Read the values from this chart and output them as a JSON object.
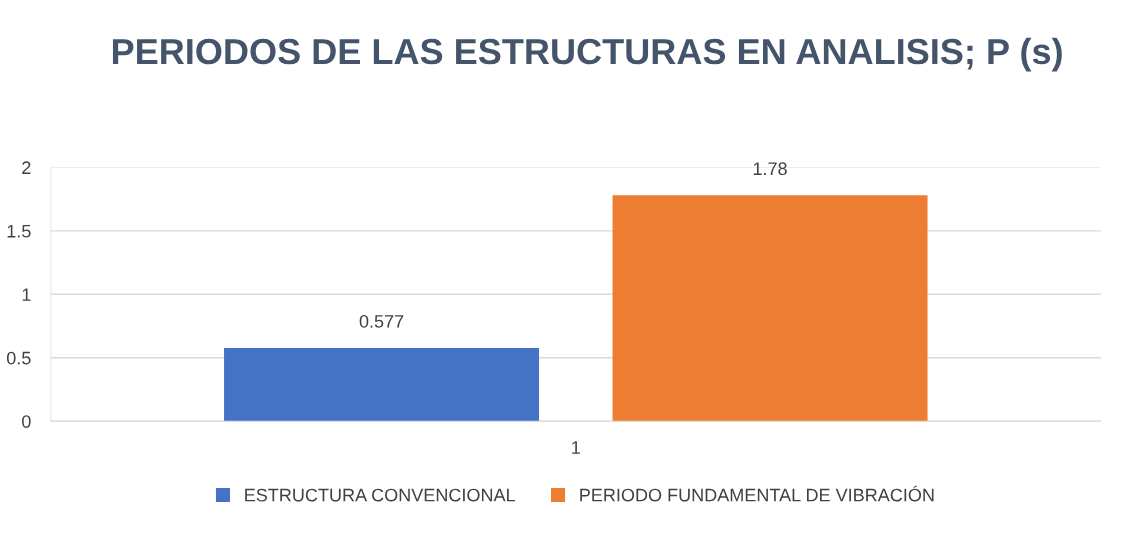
{
  "chart_data": {
    "type": "bar",
    "title": "PERIODOS DE LAS ESTRUCTURAS EN ANALISIS; P (s)",
    "categories": [
      "1"
    ],
    "series": [
      {
        "name": "ESTRUCTURA CONVENCIONAL",
        "color": "#4472c4",
        "values": [
          0.577
        ]
      },
      {
        "name": "PERIODO FUNDAMENTAL DE VIBRACIÓN",
        "color": "#ed7d31",
        "values": [
          1.78
        ]
      }
    ],
    "ylim": [
      0,
      2
    ],
    "yticks": [
      0,
      0.5,
      1,
      1.5,
      2
    ],
    "grid": "y",
    "legend": "bottom",
    "data_labels": true
  }
}
